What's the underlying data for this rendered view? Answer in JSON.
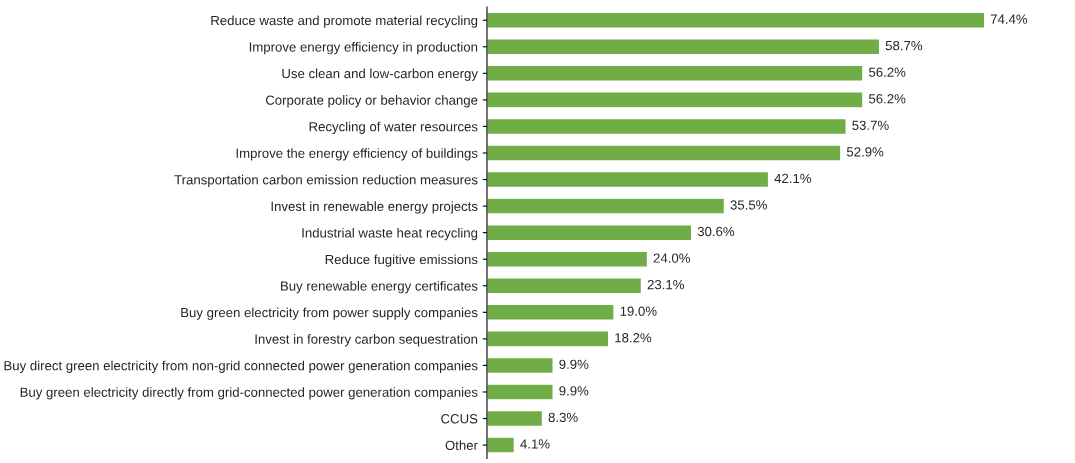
{
  "chart_data": {
    "type": "bar",
    "orientation": "horizontal",
    "categories": [
      "Reduce waste and promote material recycling",
      "Improve energy efficiency in production",
      "Use clean and low-carbon energy",
      "Corporate policy or behavior change",
      "Recycling of water resources",
      "Improve the energy efficiency of buildings",
      "Transportation carbon emission reduction measures",
      "Invest in renewable energy projects",
      "Industrial waste heat recycling",
      "Reduce fugitive emissions",
      "Buy renewable energy certificates",
      "Buy green electricity from power supply companies",
      "Invest in forestry carbon sequestration",
      "Buy direct green electricity from non-grid connected power generation companies",
      "Buy green electricity directly from grid-connected power generation companies",
      "CCUS",
      "Other"
    ],
    "values": [
      74.4,
      58.7,
      56.2,
      56.2,
      53.7,
      52.9,
      42.1,
      35.5,
      30.6,
      24.0,
      23.1,
      19.0,
      18.2,
      9.9,
      9.9,
      8.3,
      4.1
    ],
    "value_labels": [
      "74.4%",
      "58.7%",
      "56.2%",
      "56.2%",
      "53.7%",
      "52.9%",
      "42.1%",
      "35.5%",
      "30.6%",
      "24.0%",
      "23.1%",
      "19.0%",
      "18.2%",
      "9.9%",
      "9.9%",
      "8.3%",
      "4.1%"
    ],
    "color": "#70ad47",
    "grid": false,
    "legend": false
  }
}
